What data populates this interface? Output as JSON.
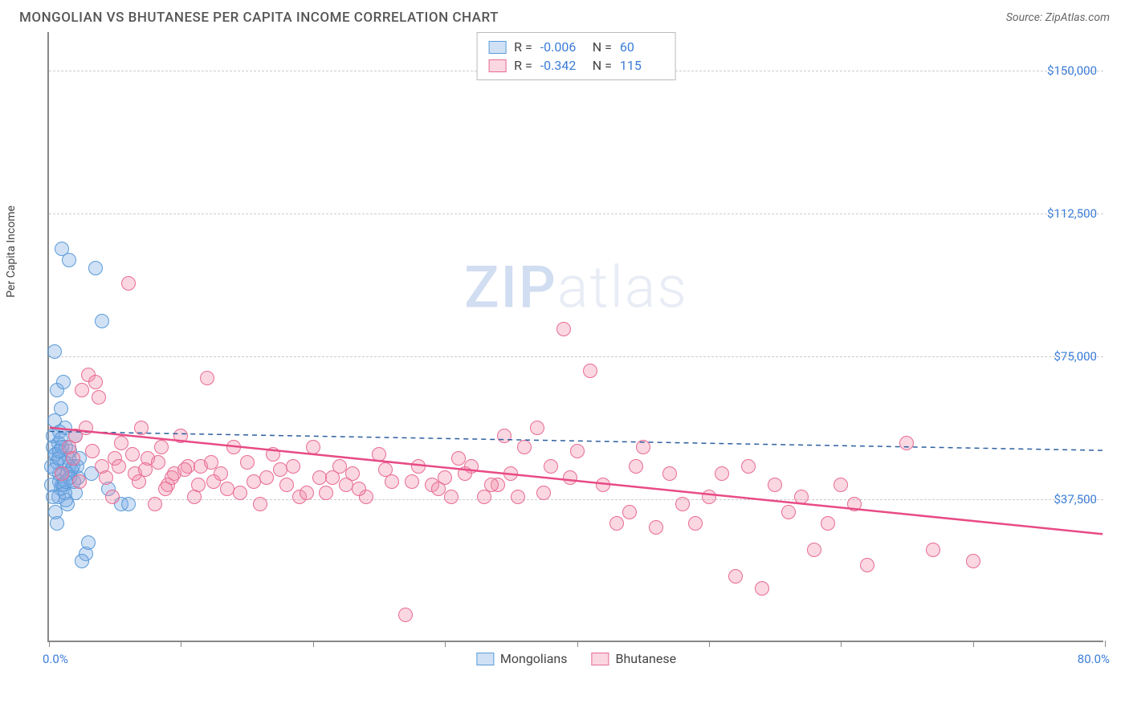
{
  "title": "MONGOLIAN VS BHUTANESE PER CAPITA INCOME CORRELATION CHART",
  "source": "Source: ZipAtlas.com",
  "watermark_zip": "ZIP",
  "watermark_atlas": "atlas",
  "ylabel": "Per Capita Income",
  "chart": {
    "type": "scatter",
    "xlim": [
      0,
      80
    ],
    "ylim": [
      0,
      160000
    ],
    "xtick_start": "0.0%",
    "xtick_end": "80.0%",
    "xtick_positions": [
      0,
      10,
      20,
      30,
      40,
      50,
      60,
      70,
      80
    ],
    "ytick_labels": [
      "$37,500",
      "$75,000",
      "$112,500",
      "$150,000"
    ],
    "ytick_values": [
      37500,
      75000,
      112500,
      150000
    ],
    "grid_color": "#cccccc",
    "background_color": "#ffffff",
    "point_radius": 9,
    "series": [
      {
        "name": "Mongolians",
        "fill": "rgba(120,170,230,0.35)",
        "stroke": "#5a9bd8",
        "R": "-0.006",
        "N": "60",
        "trend": {
          "y_start": 55000,
          "y_end": 50000,
          "stroke": "#2c5fa0",
          "dash": "6,5",
          "width": 1.5
        },
        "points": [
          [
            0.5,
            53000
          ],
          [
            0.8,
            48000
          ],
          [
            1.0,
            107000
          ],
          [
            1.5,
            104000
          ],
          [
            1.2,
            60000
          ],
          [
            0.3,
            55000
          ],
          [
            0.6,
            70000
          ],
          [
            1.0,
            45000
          ],
          [
            1.5,
            52000
          ],
          [
            2.0,
            58000
          ],
          [
            0.4,
            80000
          ],
          [
            0.7,
            42000
          ],
          [
            1.8,
            50000
          ],
          [
            2.2,
            47000
          ],
          [
            0.9,
            65000
          ],
          [
            1.3,
            55000
          ],
          [
            0.2,
            50000
          ],
          [
            0.5,
            38000
          ],
          [
            1.1,
            72000
          ],
          [
            1.6,
            54000
          ],
          [
            3.5,
            102000
          ],
          [
            2.8,
            27000
          ],
          [
            2.5,
            25000
          ],
          [
            3.0,
            30000
          ],
          [
            1.4,
            40000
          ],
          [
            0.6,
            35000
          ],
          [
            0.8,
            46000
          ],
          [
            1.2,
            51000
          ],
          [
            0.3,
            58000
          ],
          [
            0.9,
            44000
          ],
          [
            1.7,
            49000
          ],
          [
            2.0,
            43000
          ],
          [
            0.4,
            62000
          ],
          [
            0.7,
            56000
          ],
          [
            1.0,
            48000
          ],
          [
            1.3,
            41000
          ],
          [
            0.5,
            53000
          ],
          [
            0.8,
            59000
          ],
          [
            1.1,
            45000
          ],
          [
            1.5,
            50000
          ],
          [
            4.0,
            88000
          ],
          [
            2.3,
            52000
          ],
          [
            1.9,
            46000
          ],
          [
            0.6,
            51000
          ],
          [
            1.4,
            48000
          ],
          [
            0.2,
            45000
          ],
          [
            0.9,
            57000
          ],
          [
            1.2,
            43000
          ],
          [
            0.4,
            49000
          ],
          [
            0.7,
            52000
          ],
          [
            1.0,
            55000
          ],
          [
            1.6,
            47000
          ],
          [
            2.1,
            50000
          ],
          [
            0.3,
            42000
          ],
          [
            0.8,
            54000
          ],
          [
            1.3,
            46000
          ],
          [
            5.5,
            40000
          ],
          [
            3.2,
            48000
          ],
          [
            4.5,
            44000
          ],
          [
            6.0,
            40000
          ]
        ]
      },
      {
        "name": "Bhutanese",
        "fill": "rgba(240,140,170,0.35)",
        "stroke": "#e86b94",
        "R": "-0.342",
        "N": "115",
        "trend": {
          "y_start": 56000,
          "y_end": 28000,
          "stroke": "#e84b85",
          "dash": "",
          "width": 2.5
        },
        "points": [
          [
            1.5,
            55000
          ],
          [
            2.0,
            58000
          ],
          [
            3.0,
            74000
          ],
          [
            3.5,
            72000
          ],
          [
            4.0,
            50000
          ],
          [
            5.0,
            52000
          ],
          [
            6.0,
            98000
          ],
          [
            6.5,
            48000
          ],
          [
            7.0,
            60000
          ],
          [
            8.0,
            40000
          ],
          [
            8.5,
            55000
          ],
          [
            9.0,
            45000
          ],
          [
            10.0,
            58000
          ],
          [
            10.5,
            50000
          ],
          [
            11.0,
            42000
          ],
          [
            12.0,
            73000
          ],
          [
            12.5,
            46000
          ],
          [
            13.0,
            48000
          ],
          [
            14.0,
            55000
          ],
          [
            14.5,
            43000
          ],
          [
            15.0,
            51000
          ],
          [
            16.0,
            40000
          ],
          [
            16.5,
            47000
          ],
          [
            17.0,
            53000
          ],
          [
            18.0,
            45000
          ],
          [
            18.5,
            50000
          ],
          [
            19.0,
            42000
          ],
          [
            20.0,
            55000
          ],
          [
            20.5,
            47000
          ],
          [
            21.0,
            43000
          ],
          [
            22.0,
            50000
          ],
          [
            22.5,
            45000
          ],
          [
            23.0,
            48000
          ],
          [
            24.0,
            42000
          ],
          [
            25.0,
            53000
          ],
          [
            26.0,
            46000
          ],
          [
            27.0,
            11000
          ],
          [
            28.0,
            50000
          ],
          [
            29.0,
            45000
          ],
          [
            30.0,
            47000
          ],
          [
            30.5,
            42000
          ],
          [
            31.0,
            52000
          ],
          [
            32.0,
            50000
          ],
          [
            33.0,
            42000
          ],
          [
            34.0,
            45000
          ],
          [
            34.5,
            58000
          ],
          [
            35.0,
            48000
          ],
          [
            36.0,
            55000
          ],
          [
            37.0,
            60000
          ],
          [
            37.5,
            43000
          ],
          [
            38.0,
            50000
          ],
          [
            39.0,
            86000
          ],
          [
            39.5,
            47000
          ],
          [
            40.0,
            54000
          ],
          [
            41.0,
            75000
          ],
          [
            42.0,
            45000
          ],
          [
            43.0,
            35000
          ],
          [
            44.0,
            38000
          ],
          [
            44.5,
            50000
          ],
          [
            45.0,
            55000
          ],
          [
            46.0,
            34000
          ],
          [
            47.0,
            48000
          ],
          [
            48.0,
            40000
          ],
          [
            49.0,
            35000
          ],
          [
            50.0,
            42000
          ],
          [
            51.0,
            48000
          ],
          [
            52.0,
            21000
          ],
          [
            53.0,
            50000
          ],
          [
            54.0,
            18000
          ],
          [
            55.0,
            45000
          ],
          [
            56.0,
            38000
          ],
          [
            57.0,
            42000
          ],
          [
            58.0,
            28000
          ],
          [
            59.0,
            35000
          ],
          [
            60.0,
            45000
          ],
          [
            61.0,
            40000
          ],
          [
            62.0,
            24000
          ],
          [
            65.0,
            56000
          ],
          [
            67.0,
            28000
          ],
          [
            70.0,
            25000
          ],
          [
            2.5,
            70000
          ],
          [
            3.8,
            68000
          ],
          [
            5.5,
            56000
          ],
          [
            7.5,
            52000
          ],
          [
            9.5,
            48000
          ],
          [
            11.5,
            50000
          ],
          [
            13.5,
            44000
          ],
          [
            15.5,
            46000
          ],
          [
            17.5,
            49000
          ],
          [
            19.5,
            43000
          ],
          [
            21.5,
            47000
          ],
          [
            23.5,
            44000
          ],
          [
            25.5,
            49000
          ],
          [
            27.5,
            46000
          ],
          [
            29.5,
            44000
          ],
          [
            31.5,
            48000
          ],
          [
            33.5,
            45000
          ],
          [
            35.5,
            42000
          ],
          [
            1.0,
            48000
          ],
          [
            1.8,
            52000
          ],
          [
            2.3,
            46000
          ],
          [
            2.8,
            60000
          ],
          [
            3.3,
            54000
          ],
          [
            4.3,
            47000
          ],
          [
            4.8,
            42000
          ],
          [
            5.3,
            50000
          ],
          [
            6.3,
            53000
          ],
          [
            6.8,
            46000
          ],
          [
            7.3,
            49000
          ],
          [
            8.3,
            51000
          ],
          [
            8.8,
            44000
          ],
          [
            9.3,
            47000
          ],
          [
            10.3,
            49000
          ],
          [
            11.3,
            45000
          ],
          [
            12.3,
            51000
          ]
        ]
      }
    ]
  }
}
